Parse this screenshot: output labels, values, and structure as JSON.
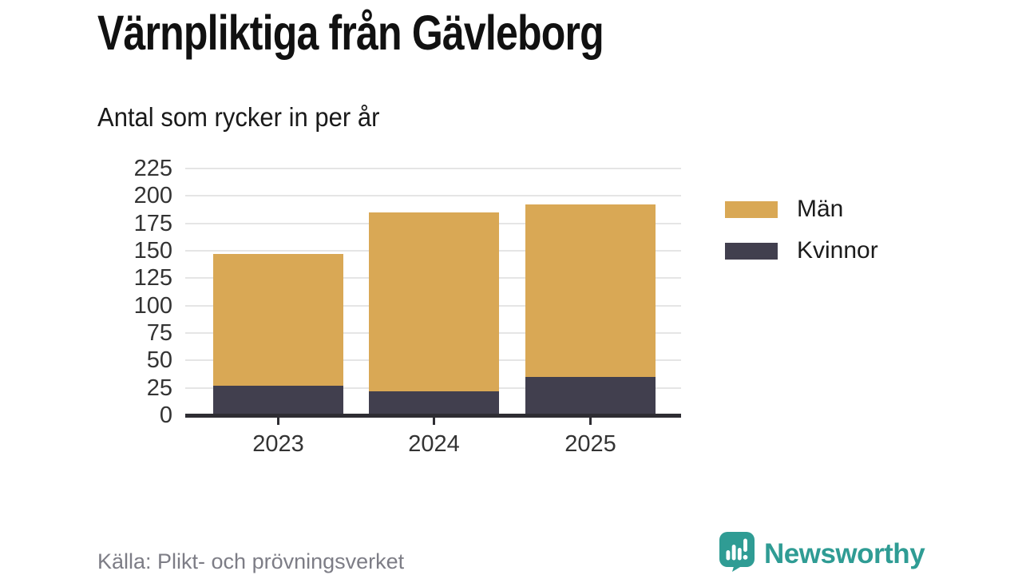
{
  "chart_data": {
    "type": "bar",
    "stacked": true,
    "title": "Värnpliktiga från Gävleborg",
    "subtitle": "Antal som rycker in per år",
    "categories": [
      "2023",
      "2024",
      "2025"
    ],
    "series": [
      {
        "name": "Kvinnor",
        "color": "#413F4E",
        "values": [
          27,
          22,
          35
        ]
      },
      {
        "name": "Män",
        "color": "#D9A855",
        "values": [
          120,
          163,
          157
        ]
      }
    ],
    "stack_order_note": "series listed bottom-to-top",
    "totals": [
      147,
      185,
      192
    ],
    "legend": [
      "Män",
      "Kvinnor"
    ],
    "legend_position": "right",
    "xlabel": "",
    "ylabel": "",
    "ylim": [
      0,
      225
    ],
    "yticks": [
      0,
      25,
      50,
      75,
      100,
      125,
      150,
      175,
      200,
      225
    ],
    "grid": true,
    "grid_color": "#E5E5E5",
    "axis_color": "#2E2D33",
    "tick_label_color": "#333333"
  },
  "footer": {
    "source": "Källa: Plikt- och prövningsverket",
    "brand": "Newsworthy",
    "brand_color": "#2F9C94",
    "brand_icon": "newsworthy-speech-bubble-bar-chart-icon"
  }
}
